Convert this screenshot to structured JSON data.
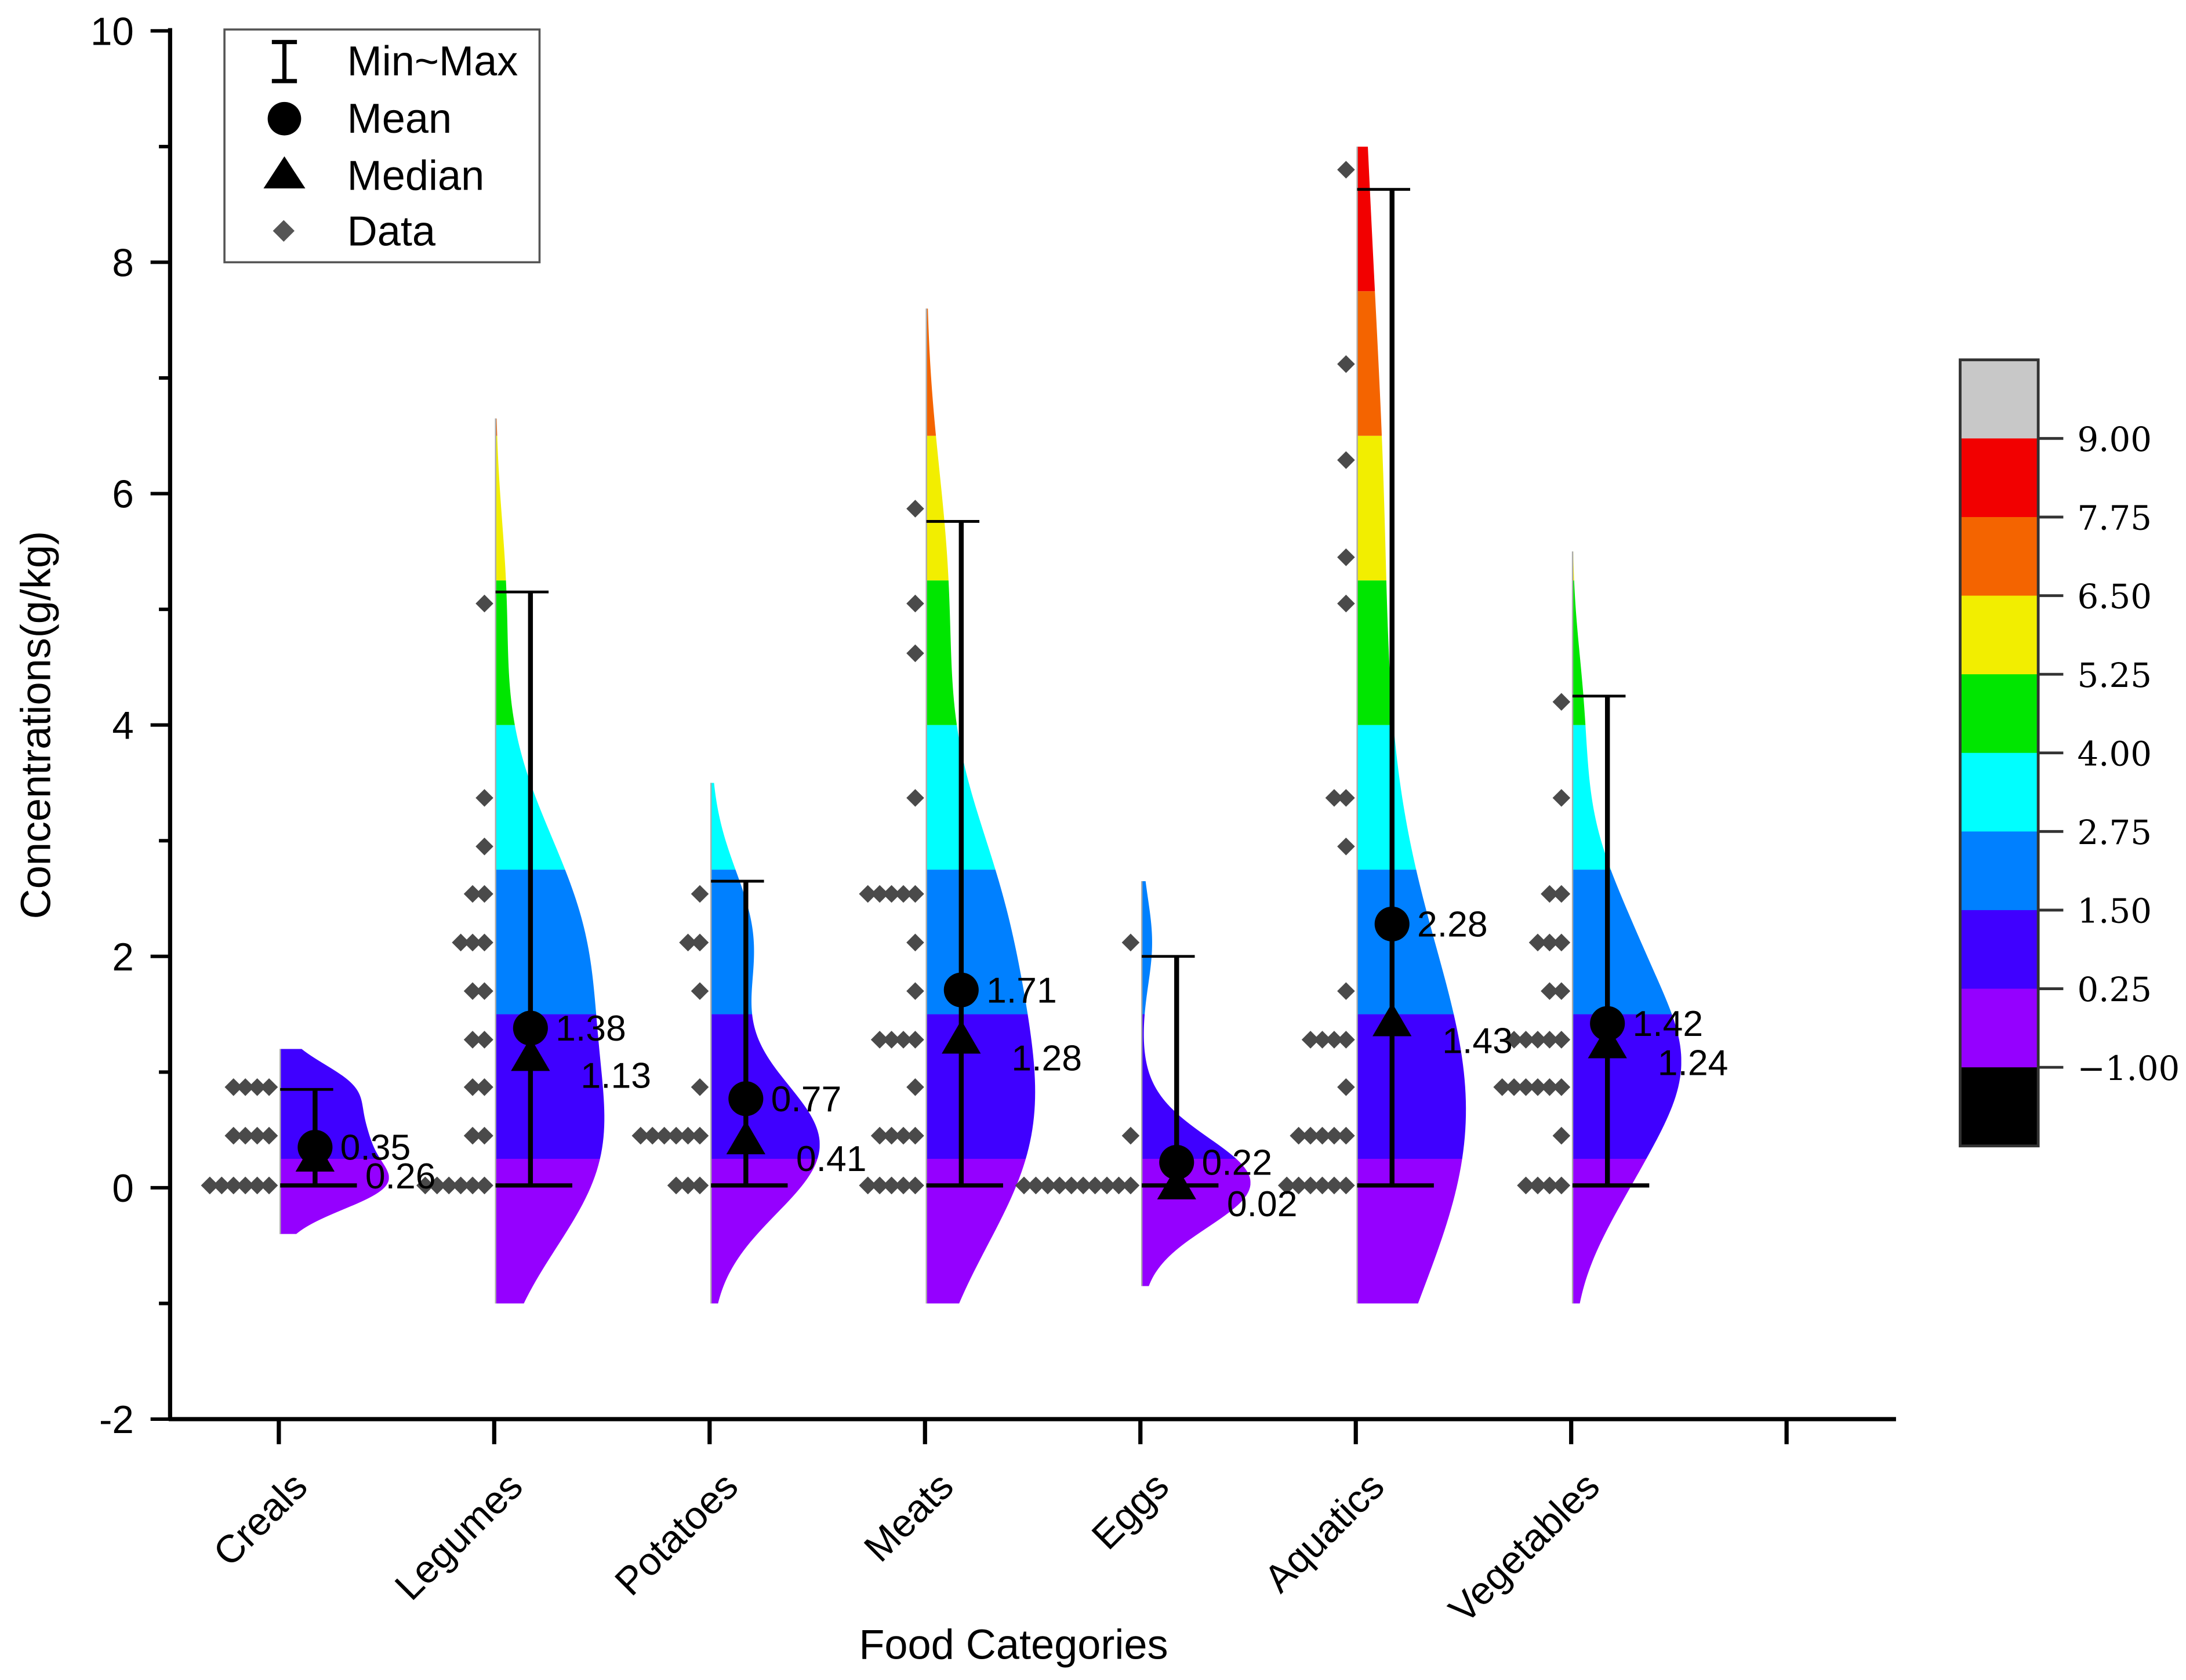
{
  "chart_data": {
    "type": "violin",
    "xlabel": "Food Categories",
    "ylabel": "Concentrations(g/kg)",
    "ylim": [
      -2,
      10
    ],
    "yticks": [
      "-2",
      "0",
      "2",
      "4",
      "6",
      "8",
      "10"
    ],
    "ytick_values": [
      -2,
      0,
      2,
      4,
      6,
      8,
      10
    ],
    "categories": [
      "Creals",
      "Legumes",
      "Potatoes",
      "Meats",
      "Eggs",
      "Aquatics",
      "Vegetables"
    ],
    "legend": {
      "position": "top-left",
      "items": [
        {
          "label": "Min~Max",
          "symbol": "errorbar"
        },
        {
          "label": "Mean",
          "symbol": "circle"
        },
        {
          "label": "Median",
          "symbol": "triangle"
        },
        {
          "label": "Data",
          "symbol": "diamond"
        }
      ]
    },
    "colorbar": {
      "levels": [
        -1.0,
        0.25,
        1.5,
        2.75,
        4.0,
        5.25,
        6.5,
        7.75,
        9.0
      ],
      "labels": [
        "−1.00",
        "0.25",
        "1.50",
        "2.75",
        "4.00",
        "5.25",
        "6.50",
        "7.75",
        "9.00"
      ],
      "colors": [
        "#000000",
        "#9500ff",
        "#3f00ff",
        "#0080ff",
        "#00ffff",
        "#00e600",
        "#f2ee00",
        "#f46400",
        "#f20000",
        "#c8c8c8"
      ]
    },
    "series": [
      {
        "name": "Creals",
        "min": 0.02,
        "max": 0.85,
        "mean": 0.35,
        "median": 0.26,
        "mean_label": "0.35",
        "median_label": "0.26",
        "violin_range": [
          -0.4,
          1.2
        ],
        "data": [
          [
            0.02,
            6
          ],
          [
            0.45,
            4
          ],
          [
            0.87,
            4
          ]
        ]
      },
      {
        "name": "Legumes",
        "min": 0.02,
        "max": 5.15,
        "mean": 1.38,
        "median": 1.13,
        "mean_label": "1.38",
        "median_label": "1.13",
        "violin_range": [
          -1,
          6.65
        ],
        "data": [
          [
            0.02,
            6
          ],
          [
            0.45,
            2
          ],
          [
            0.87,
            2
          ],
          [
            1.28,
            2
          ],
          [
            1.7,
            2
          ],
          [
            2.12,
            3
          ],
          [
            2.54,
            2
          ],
          [
            2.95,
            1
          ],
          [
            3.37,
            1
          ],
          [
            5.05,
            1
          ]
        ]
      },
      {
        "name": "Potatoes",
        "min": 0.02,
        "max": 2.65,
        "mean": 0.77,
        "median": 0.41,
        "mean_label": "0.77",
        "median_label": "0.41",
        "violin_range": [
          -1,
          3.5
        ],
        "data": [
          [
            0.02,
            3
          ],
          [
            0.45,
            6
          ],
          [
            0.87,
            1
          ],
          [
            1.7,
            1
          ],
          [
            2.12,
            2
          ],
          [
            2.54,
            1
          ]
        ]
      },
      {
        "name": "Meats",
        "min": 0.02,
        "max": 5.76,
        "mean": 1.71,
        "median": 1.28,
        "mean_label": "1.71",
        "median_label": "1.28",
        "violin_range": [
          -1,
          7.6
        ],
        "data": [
          [
            0.02,
            5
          ],
          [
            0.45,
            4
          ],
          [
            0.87,
            1
          ],
          [
            1.28,
            4
          ],
          [
            1.7,
            1
          ],
          [
            2.12,
            1
          ],
          [
            2.54,
            5
          ],
          [
            3.37,
            1
          ],
          [
            4.62,
            1
          ],
          [
            5.05,
            1
          ],
          [
            5.87,
            1
          ]
        ]
      },
      {
        "name": "Eggs",
        "min": 0.02,
        "max": 2.0,
        "mean": 0.22,
        "median": 0.02,
        "mean_label": "0.22",
        "median_label": "0.02",
        "violin_range": [
          -0.85,
          2.65
        ],
        "data": [
          [
            0.02,
            10
          ],
          [
            0.45,
            1
          ],
          [
            2.12,
            1
          ]
        ]
      },
      {
        "name": "Aquatics",
        "min": 0.02,
        "max": 8.63,
        "mean": 2.28,
        "median": 1.43,
        "mean_label": "2.28",
        "median_label": "1.43",
        "violin_range": [
          -1,
          9.0
        ],
        "data": [
          [
            0.02,
            6
          ],
          [
            0.45,
            5
          ],
          [
            0.87,
            1
          ],
          [
            1.28,
            4
          ],
          [
            1.7,
            1
          ],
          [
            2.95,
            1
          ],
          [
            3.37,
            2
          ],
          [
            5.05,
            1
          ],
          [
            5.45,
            1
          ],
          [
            6.29,
            1
          ],
          [
            7.12,
            1
          ],
          [
            8.8,
            1
          ]
        ]
      },
      {
        "name": "Vegetables",
        "min": 0.02,
        "max": 4.25,
        "mean": 1.42,
        "median": 1.24,
        "mean_label": "1.42",
        "median_label": "1.24",
        "violin_range": [
          -1,
          5.5
        ],
        "data": [
          [
            0.02,
            4
          ],
          [
            0.45,
            1
          ],
          [
            0.87,
            6
          ],
          [
            1.28,
            5
          ],
          [
            1.7,
            2
          ],
          [
            2.12,
            3
          ],
          [
            2.54,
            2
          ],
          [
            3.37,
            1
          ],
          [
            4.2,
            1
          ]
        ]
      }
    ]
  }
}
